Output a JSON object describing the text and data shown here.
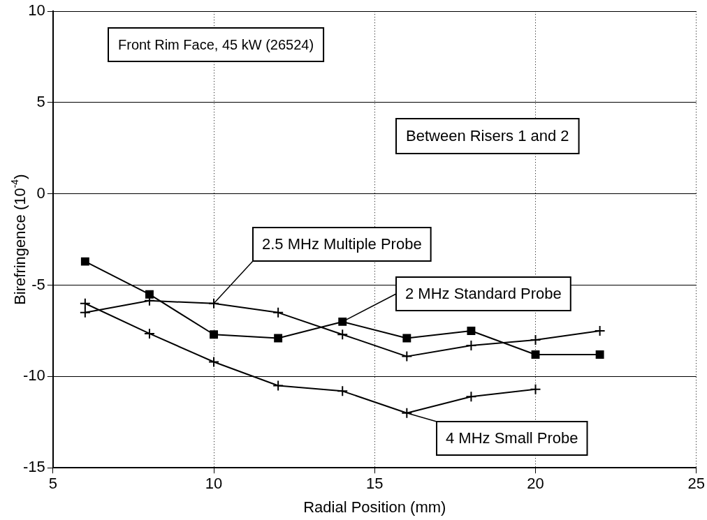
{
  "chart_data": {
    "type": "line",
    "xlabel": "Radial Position (mm)",
    "ylabel": "Birefringence (10$^{-4}$)",
    "annotations": [
      "Front Rim Face, 45 kW (26524)",
      "Between Risers 1 and 2"
    ],
    "x": [
      6,
      8,
      10,
      12,
      14,
      16,
      18,
      20,
      22
    ],
    "xlim": [
      5,
      25
    ],
    "xticks": [
      5,
      10,
      15,
      20,
      25
    ],
    "ylim": [
      -15,
      10
    ],
    "yticks": [
      -15,
      -10,
      -5,
      0,
      5,
      10
    ],
    "grid": true,
    "legend": false,
    "series": [
      {
        "name": "2 MHz Standard Probe",
        "color": "#000000",
        "marker": "square",
        "values": [
          -3.7,
          -5.5,
          -7.7,
          -7.9,
          -7.0,
          -7.9,
          -7.5,
          -8.8,
          -8.8
        ]
      },
      {
        "name": "2.5 MHz Multiple Probe",
        "color": "#000000",
        "marker": "cross",
        "values": [
          -6.5,
          -5.85,
          -6.0,
          -6.5,
          -7.7,
          -8.9,
          -8.3,
          -8.0,
          -7.5
        ]
      },
      {
        "name": "4 MHz Small Probe",
        "color": "#000000",
        "marker": "cross",
        "values": [
          -6.0,
          -7.65,
          -9.2,
          -10.5,
          -10.8,
          -12.0,
          -11.1,
          -10.7,
          null
        ]
      }
    ]
  }
}
